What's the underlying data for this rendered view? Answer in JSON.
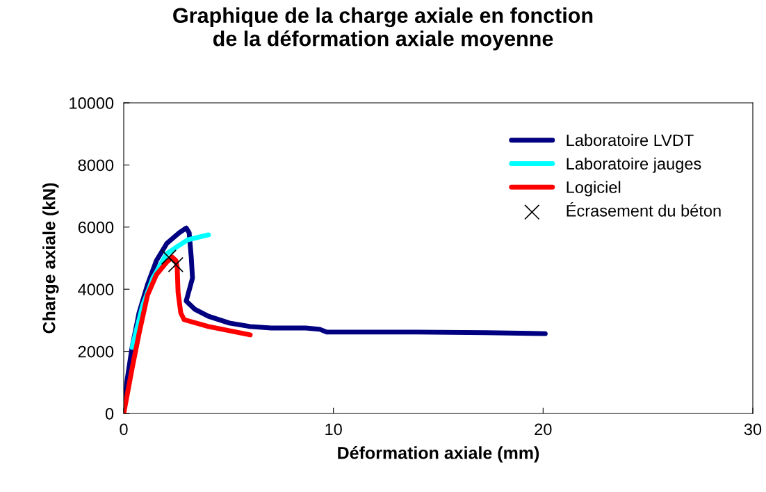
{
  "chart_data": {
    "type": "line",
    "title": "Graphique de la charge axiale en fonction\nde la déformation axiale moyenne",
    "xlabel": "Déformation axiale (mm)",
    "ylabel": "Charge axiale (kN)",
    "xlim": [
      0,
      30
    ],
    "xticks": [
      0,
      10,
      20,
      30
    ],
    "ylim": [
      0,
      10000
    ],
    "yticks": [
      0,
      2000,
      4000,
      6000,
      8000,
      10000
    ],
    "grid": false,
    "legend": "top right",
    "series": [
      {
        "name": "Laboratoire LVDT",
        "color": "#000080",
        "line_style": "solid",
        "marker": "none",
        "x": [
          0,
          0.17,
          0.4,
          0.73,
          1.13,
          1.56,
          2.06,
          2.65,
          2.98,
          3.12,
          3.22,
          3.28,
          2.98,
          3.38,
          4.04,
          5.04,
          6.03,
          7.03,
          8.68,
          9.35,
          9.68,
          10.67,
          14,
          17.3,
          20.1
        ],
        "values": [
          110,
          1120,
          2130,
          3240,
          4140,
          4920,
          5480,
          5820,
          5970,
          5820,
          5030,
          4360,
          3620,
          3360,
          3130,
          2910,
          2800,
          2750,
          2750,
          2710,
          2620,
          2620,
          2620,
          2600,
          2570
        ]
      },
      {
        "name": "Laboratoire jauges",
        "color": "#00ffff",
        "line_style": "solid",
        "marker": "none",
        "x": [
          0.4,
          0.9,
          1.39,
          2.06,
          2.55,
          3.05,
          4.04
        ],
        "values": [
          2130,
          3470,
          4360,
          5150,
          5370,
          5590,
          5750
        ]
      },
      {
        "name": "Logiciel",
        "color": "#ff0000",
        "line_style": "solid",
        "marker": "none",
        "x": [
          0,
          0.4,
          0.73,
          1.13,
          1.56,
          2.06,
          2.32,
          2.49,
          2.55,
          2.59,
          2.72,
          2.88,
          4.04,
          6.03
        ],
        "values": [
          0,
          1450,
          2570,
          3800,
          4470,
          4880,
          5030,
          4920,
          4700,
          3910,
          3240,
          3020,
          2800,
          2530
        ]
      },
      {
        "name": "Écrasement du béton",
        "type": "scatter",
        "color": "#000000",
        "marker": "cross",
        "x": [
          2.15,
          2.48
        ],
        "values": [
          5030,
          4790
        ]
      }
    ]
  }
}
